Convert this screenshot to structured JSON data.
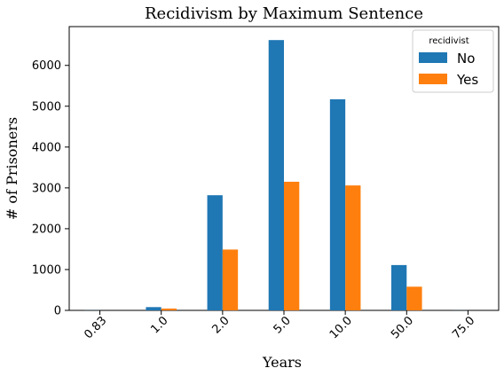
{
  "chart_data": {
    "type": "bar",
    "title": "Recidivism by Maximum Sentence",
    "xlabel": "Years",
    "ylabel": "# of Prisoners",
    "categories": [
      "0.83",
      "1.0",
      "2.0",
      "5.0",
      "10.0",
      "50.0",
      "75.0"
    ],
    "series": [
      {
        "name": "No",
        "color": "#1f77b4",
        "values": [
          3,
          80,
          2820,
          6620,
          5170,
          1110,
          2
        ]
      },
      {
        "name": "Yes",
        "color": "#ff7f0e",
        "values": [
          0,
          45,
          1490,
          3150,
          3060,
          580,
          0
        ]
      }
    ],
    "ylim": [
      0,
      6950
    ],
    "yticks": [
      0,
      1000,
      2000,
      3000,
      4000,
      5000,
      6000
    ],
    "grid": false,
    "legend": {
      "title": "recidivist",
      "placement": "top-right"
    }
  }
}
